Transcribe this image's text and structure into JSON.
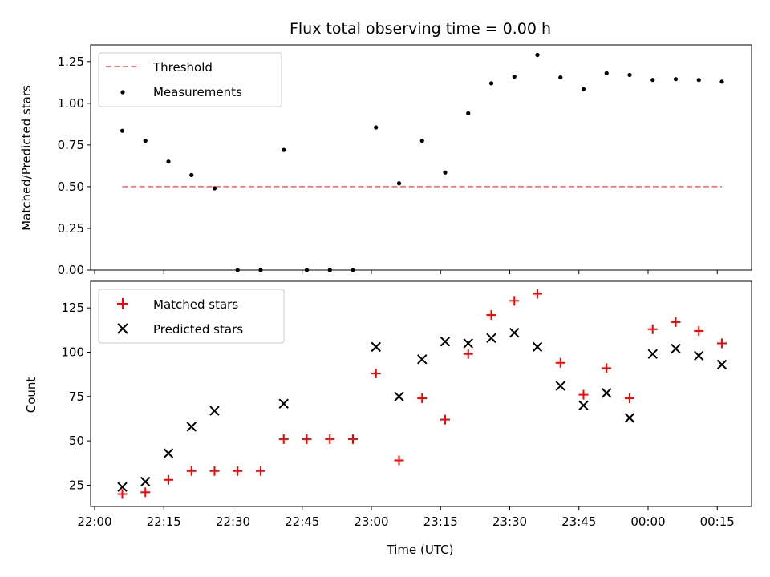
{
  "chart_data": [
    {
      "type": "scatter",
      "title": "Flux total observing time = 0.00 h",
      "xlabel": "",
      "ylabel": "Matched/Predicted stars",
      "ylim": [
        0,
        1.35
      ],
      "yticks": [
        "0.00",
        "0.25",
        "0.50",
        "0.75",
        "1.00",
        "1.25"
      ],
      "legend_position": "top-left",
      "grid": false,
      "threshold": {
        "name": "Threshold",
        "y": 0.5,
        "x_start": "22:06",
        "x_end": "00:16",
        "color": "#f08080"
      },
      "series": [
        {
          "name": "Measurements",
          "color": "#000000",
          "marker": "dot",
          "x": [
            "22:06",
            "22:11",
            "22:16",
            "22:21",
            "22:26",
            "22:31",
            "22:36",
            "22:41",
            "22:46",
            "22:51",
            "22:56",
            "23:01",
            "23:06",
            "23:11",
            "23:16",
            "23:21",
            "23:26",
            "23:31",
            "23:36",
            "23:41",
            "23:46",
            "23:51",
            "23:56",
            "00:01",
            "00:06",
            "00:11",
            "00:16"
          ],
          "y": [
            0.835,
            0.775,
            0.65,
            0.57,
            0.49,
            0.0,
            0.0,
            0.72,
            0.0,
            0.0,
            0.0,
            0.855,
            0.52,
            0.775,
            0.585,
            0.94,
            1.12,
            1.16,
            1.29,
            1.155,
            1.085,
            1.18,
            1.17,
            1.14,
            1.145,
            1.14,
            1.13
          ]
        }
      ]
    },
    {
      "type": "scatter",
      "title": "",
      "xlabel": "Time (UTC)",
      "ylabel": "Count",
      "ylim": [
        13,
        140
      ],
      "yticks": [
        "25",
        "50",
        "75",
        "100",
        "125"
      ],
      "xticks": [
        "22:00",
        "22:15",
        "22:30",
        "22:45",
        "23:00",
        "23:15",
        "23:30",
        "23:45",
        "00:00",
        "00:15"
      ],
      "legend_position": "top-left",
      "grid": false,
      "series": [
        {
          "name": "Matched stars",
          "color": "#ff0000",
          "marker": "plus",
          "x": [
            "22:06",
            "22:11",
            "22:16",
            "22:21",
            "22:26",
            "22:31",
            "22:36",
            "22:41",
            "22:46",
            "22:51",
            "22:56",
            "23:01",
            "23:06",
            "23:11",
            "23:16",
            "23:21",
            "23:26",
            "23:31",
            "23:36",
            "23:41",
            "23:46",
            "23:51",
            "23:56",
            "00:01",
            "00:06",
            "00:11",
            "00:16"
          ],
          "y": [
            20,
            21,
            28,
            33,
            33,
            33,
            33,
            51,
            51,
            51,
            51,
            88,
            39,
            74,
            62,
            99,
            121,
            129,
            133,
            94,
            76,
            91,
            74,
            113,
            117,
            112,
            105
          ]
        },
        {
          "name": "Predicted stars",
          "color": "#000000",
          "marker": "x",
          "x": [
            "22:06",
            "22:11",
            "22:16",
            "22:21",
            "22:26",
            "22:41",
            "23:01",
            "23:06",
            "23:11",
            "23:16",
            "23:21",
            "23:26",
            "23:31",
            "23:36",
            "23:41",
            "23:46",
            "23:51",
            "23:56",
            "00:01",
            "00:06",
            "00:11",
            "00:16"
          ],
          "y": [
            24,
            27,
            43,
            58,
            67,
            71,
            103,
            75,
            96,
            106,
            105,
            108,
            111,
            103,
            81,
            70,
            77,
            63,
            99,
            102,
            98,
            93
          ]
        }
      ]
    }
  ]
}
